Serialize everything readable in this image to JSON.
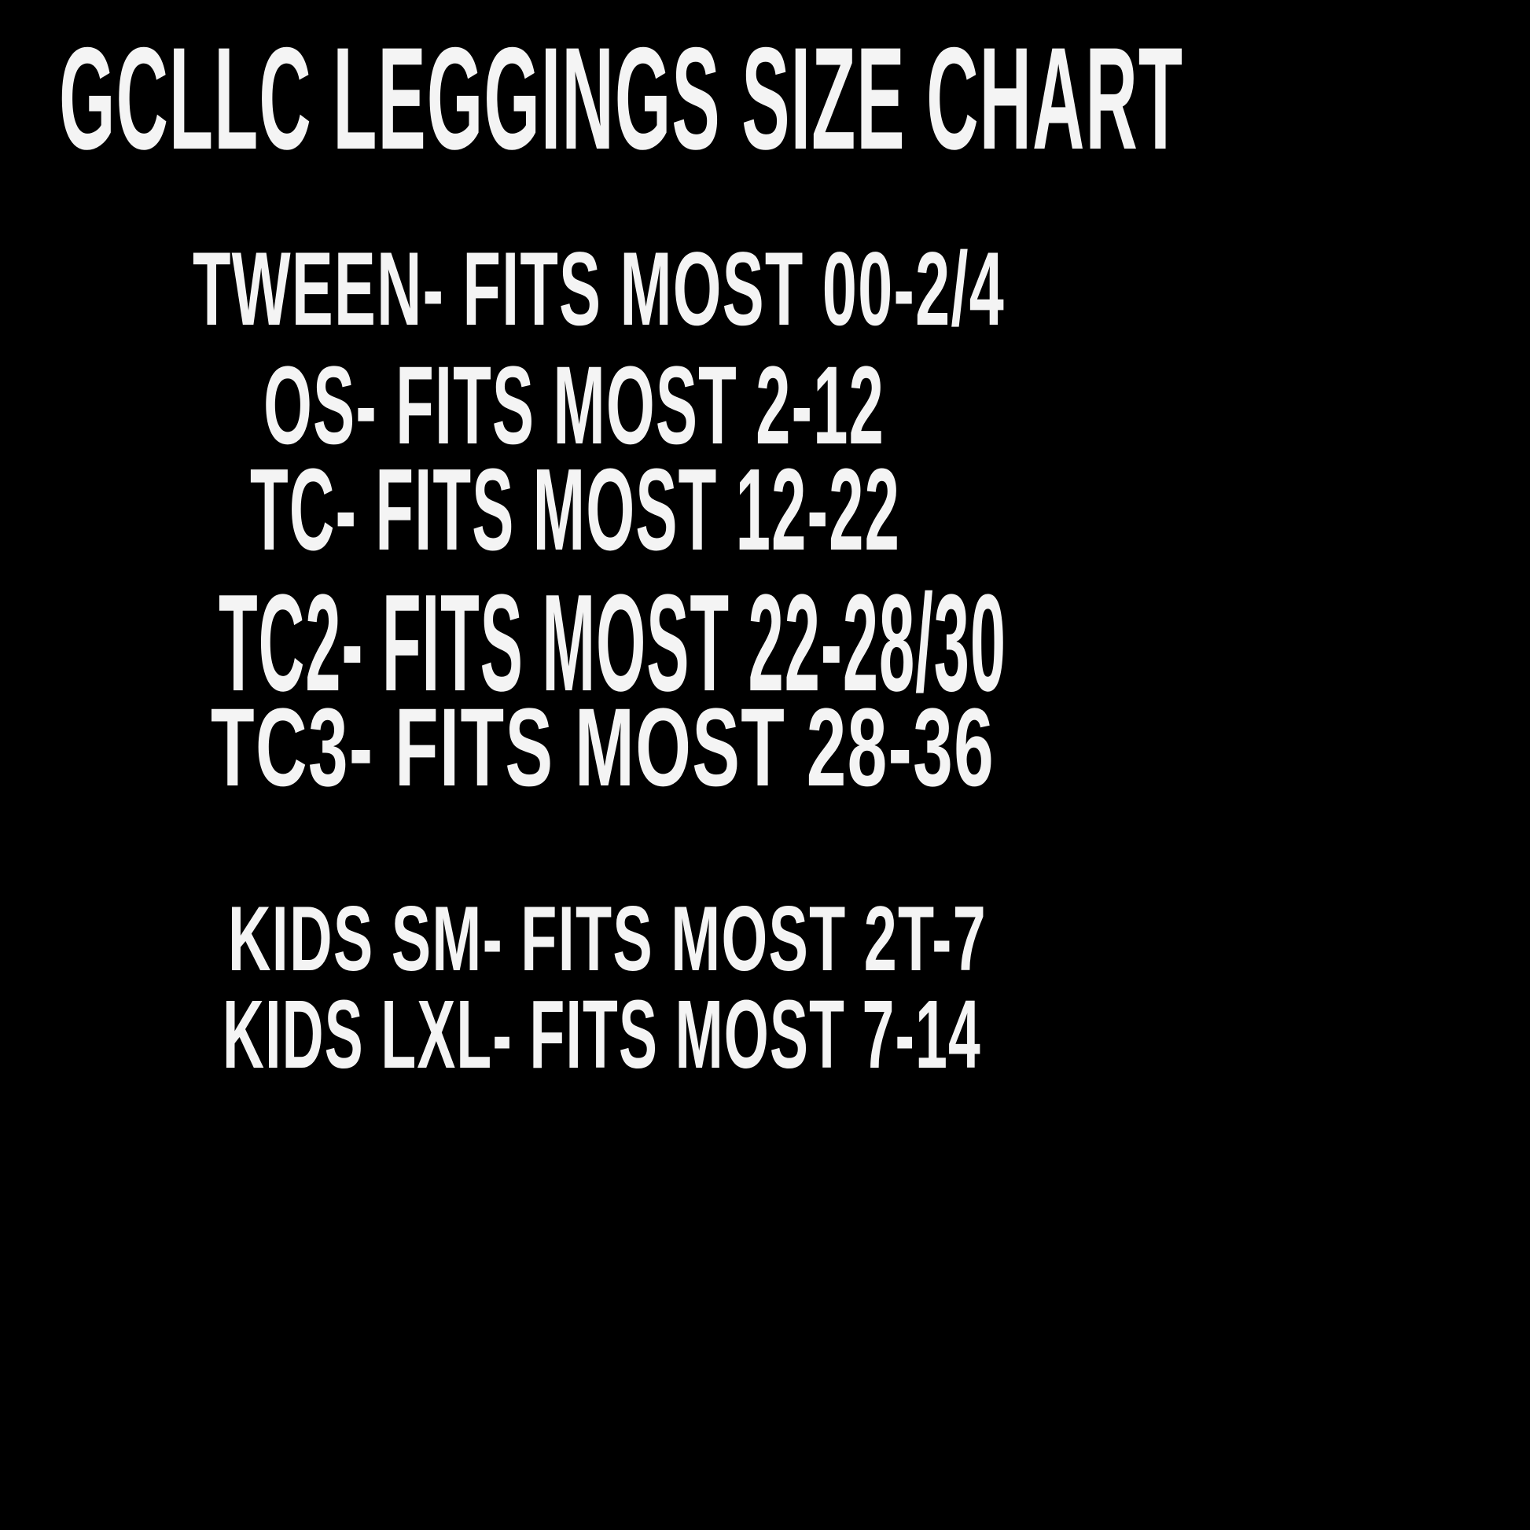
{
  "title": "GCLLC LEGGINGS SIZE CHART",
  "colors": {
    "background": "#000000",
    "text": "#f4f4f4"
  },
  "adult_sizes": [
    "TWEEN- FITS MOST 00-2/4",
    "OS- FITS MOST 2-12",
    "TC- FITS MOST 12-22",
    "TC2- FITS MOST 22-28/30",
    "TC3- FITS MOST 28-36"
  ],
  "kids_sizes": [
    "KIDS SM- FITS MOST 2T-7",
    "KIDS LXL- FITS MOST 7-14"
  ]
}
